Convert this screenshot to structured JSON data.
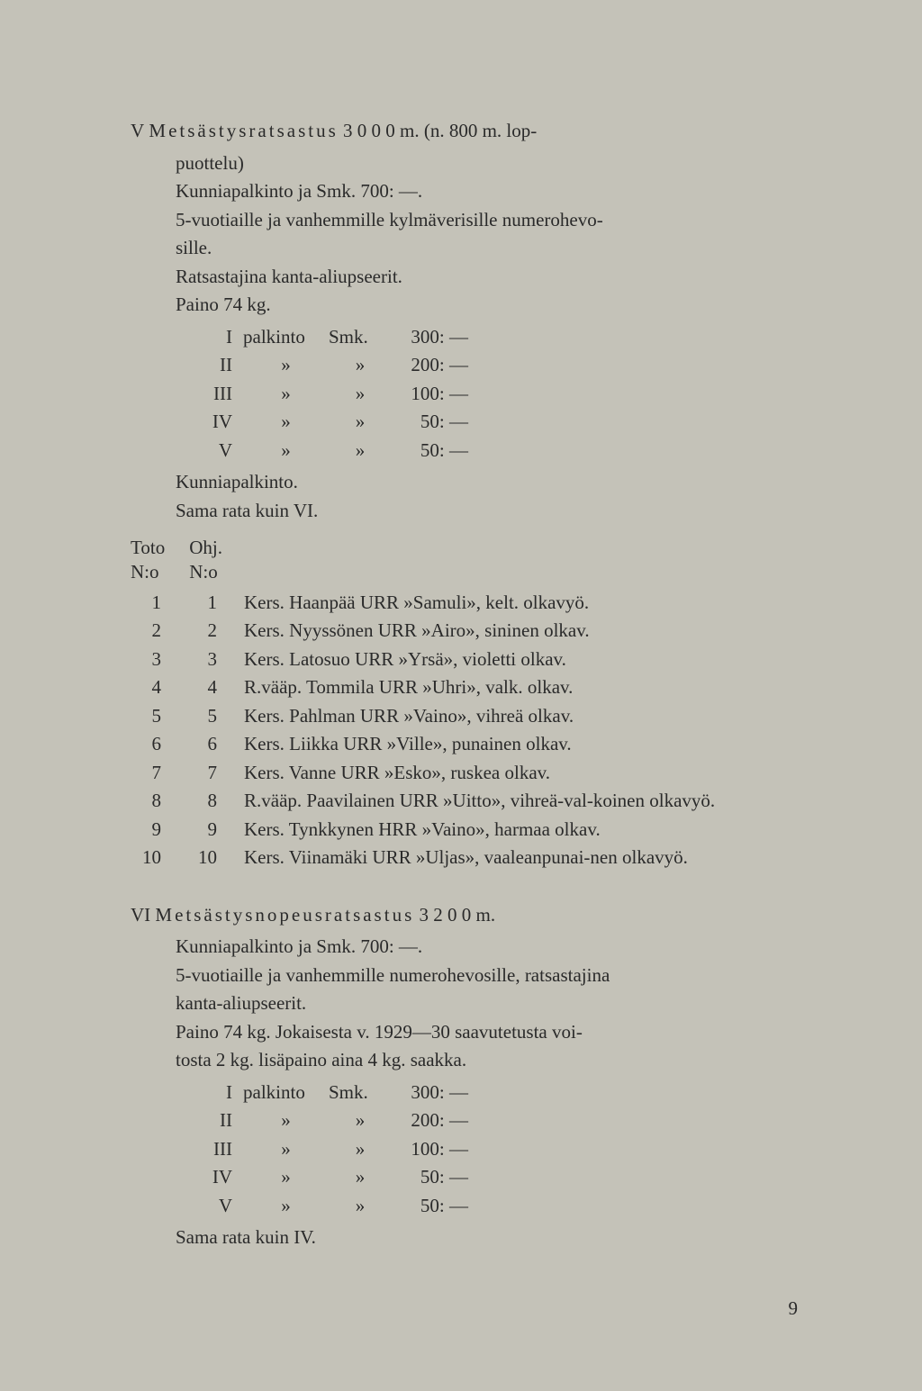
{
  "section_v": {
    "numeral": "V",
    "title": "Metsästysratsastus",
    "title_rest": "  3 0 0 0  m.  (n.  800  m.  lop-",
    "line2": "puottelu)",
    "line3": "Kunniapalkinto ja Smk. 700: —.",
    "line4": "5-vuotiaille ja vanhemmille kylmäverisille numerohevo-",
    "line5": "sille.",
    "line6": "Ratsastajina kanta-aliupseerit.",
    "line7": "Paino 74 kg.",
    "prizes": [
      {
        "rank": "I",
        "word": "palkinto",
        "curr": "Smk.",
        "amt": "300: —"
      },
      {
        "rank": "II",
        "word": "»",
        "curr": "»",
        "amt": "200: —"
      },
      {
        "rank": "III",
        "word": "»",
        "curr": "»",
        "amt": "100: —"
      },
      {
        "rank": "IV",
        "word": "»",
        "curr": "»",
        "amt": "50: —"
      },
      {
        "rank": "V",
        "word": "»",
        "curr": "»",
        "amt": "50: —"
      }
    ],
    "line_kunnia": "Kunniapalkinto.",
    "line_sama": "Sama rata kuin VI."
  },
  "toto": {
    "header_l1a": "Toto",
    "header_l1b": "Ohj.",
    "header_l2a": "N:o",
    "header_l2b": "N:o",
    "entries": [
      {
        "n1": "1",
        "n2": "1",
        "text": "Kers. Haanpää URR »Samuli», kelt. olkavyö."
      },
      {
        "n1": "2",
        "n2": "2",
        "text": "Kers. Nyyssönen URR »Airo», sininen olkav."
      },
      {
        "n1": "3",
        "n2": "3",
        "text": "Kers. Latosuo URR »Yrsä», violetti olkav."
      },
      {
        "n1": "4",
        "n2": "4",
        "text": "R.vääp. Tommila URR »Uhri», valk. olkav."
      },
      {
        "n1": "5",
        "n2": "5",
        "text": "Kers. Pahlman URR »Vaino», vihreä olkav."
      },
      {
        "n1": "6",
        "n2": "6",
        "text": "Kers. Liikka URR »Ville», punainen olkav."
      },
      {
        "n1": "7",
        "n2": "7",
        "text": "Kers. Vanne URR »Esko», ruskea olkav."
      },
      {
        "n1": "8",
        "n2": "8",
        "text": "R.vääp. Paavilainen URR »Uitto», vihreä-val-koinen olkavyö."
      },
      {
        "n1": "9",
        "n2": "9",
        "text": "Kers. Tynkkynen HRR »Vaino», harmaa olkav."
      },
      {
        "n1": "10",
        "n2": "10",
        "text": "Kers. Viinamäki URR »Uljas», vaaleanpunai-nen olkavyö."
      }
    ]
  },
  "section_vi": {
    "numeral": "VI",
    "title": "Metsästysnopeusratsastus",
    "title_rest": "  3 2 0 0  m.",
    "line2": "Kunniapalkinto ja Smk. 700: —.",
    "line3": "5-vuotiaille ja vanhemmille numerohevosille, ratsastajina",
    "line4": "kanta-aliupseerit.",
    "line5": "Paino 74 kg. Jokaisesta v. 1929—30 saavutetusta voi-",
    "line6": "tosta 2 kg. lisäpaino aina 4 kg. saakka.",
    "prizes": [
      {
        "rank": "I",
        "word": "palkinto",
        "curr": "Smk.",
        "amt": "300: —"
      },
      {
        "rank": "II",
        "word": "»",
        "curr": "»",
        "amt": "200: —"
      },
      {
        "rank": "III",
        "word": "»",
        "curr": "»",
        "amt": "100: —"
      },
      {
        "rank": "IV",
        "word": "»",
        "curr": "»",
        "amt": "50: —"
      },
      {
        "rank": "V",
        "word": "»",
        "curr": "»",
        "amt": "50: —"
      }
    ],
    "line_sama": "Sama rata kuin IV."
  },
  "page_number": "9"
}
